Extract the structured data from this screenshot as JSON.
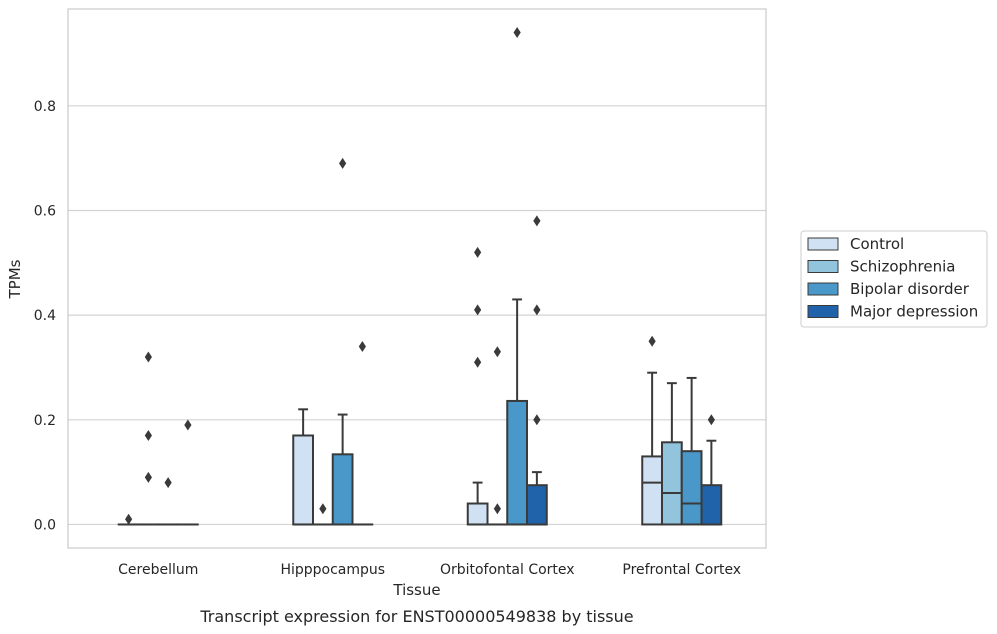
{
  "chart_data": {
    "type": "boxplot",
    "caption": "Transcript expression for ENST00000549838 by tissue",
    "xlabel": "Tissue",
    "ylabel": "TPMs",
    "ylim": [
      -0.045,
      0.985
    ],
    "yticks": [
      0.0,
      0.2,
      0.4,
      0.6,
      0.8
    ],
    "ytick_labels": [
      "0.0",
      "0.2",
      "0.4",
      "0.6",
      "0.8"
    ],
    "grid": "horizontal",
    "legend_placement": "right",
    "categories": [
      "Cerebellum",
      "Hipppocampus",
      "Orbitofontal Cortex",
      "Prefrontal Cortex"
    ],
    "series": [
      {
        "name": "Control",
        "color": "#cfe1f2",
        "boxes": [
          {
            "q1": 0,
            "median": 0,
            "q3": 0,
            "whisker_low": 0,
            "whisker_high": 0,
            "outliers": [
              0.01
            ]
          },
          {
            "q1": 0,
            "median": 0,
            "q3": 0.17,
            "whisker_low": 0,
            "whisker_high": 0.22,
            "outliers": []
          },
          {
            "q1": 0,
            "median": 0,
            "q3": 0.04,
            "whisker_low": 0,
            "whisker_high": 0.08,
            "outliers": [
              0.31,
              0.41,
              0.52
            ]
          },
          {
            "q1": 0,
            "median": 0.08,
            "q3": 0.13,
            "whisker_low": 0,
            "whisker_high": 0.29,
            "outliers": [
              0.35
            ]
          }
        ]
      },
      {
        "name": "Schizophrenia",
        "color": "#93c4de",
        "boxes": [
          {
            "q1": 0,
            "median": 0,
            "q3": 0,
            "whisker_low": 0,
            "whisker_high": 0,
            "outliers": [
              0.09,
              0.17,
              0.32
            ]
          },
          {
            "q1": 0,
            "median": 0,
            "q3": 0,
            "whisker_low": 0,
            "whisker_high": 0,
            "outliers": [
              0.03
            ]
          },
          {
            "q1": 0,
            "median": 0,
            "q3": 0,
            "whisker_low": 0,
            "whisker_high": 0,
            "outliers": [
              0.03,
              0.33
            ]
          },
          {
            "q1": 0,
            "median": 0.06,
            "q3": 0.157,
            "whisker_low": 0,
            "whisker_high": 0.27,
            "outliers": []
          }
        ]
      },
      {
        "name": "Bipolar disorder",
        "color": "#4a98c9",
        "boxes": [
          {
            "q1": 0,
            "median": 0,
            "q3": 0,
            "whisker_low": 0,
            "whisker_high": 0,
            "outliers": [
              0.08
            ]
          },
          {
            "q1": 0,
            "median": 0,
            "q3": 0.134,
            "whisker_low": 0,
            "whisker_high": 0.21,
            "outliers": [
              0.69
            ]
          },
          {
            "q1": 0,
            "median": 0,
            "q3": 0.236,
            "whisker_low": 0,
            "whisker_high": 0.43,
            "outliers": [
              0.94
            ]
          },
          {
            "q1": 0,
            "median": 0.04,
            "q3": 0.14,
            "whisker_low": 0,
            "whisker_high": 0.28,
            "outliers": []
          }
        ]
      },
      {
        "name": "Major depression",
        "color": "#2163aa",
        "boxes": [
          {
            "q1": 0,
            "median": 0,
            "q3": 0,
            "whisker_low": 0,
            "whisker_high": 0,
            "outliers": [
              0.19
            ]
          },
          {
            "q1": 0,
            "median": 0,
            "q3": 0,
            "whisker_low": 0,
            "whisker_high": 0,
            "outliers": [
              0.34
            ]
          },
          {
            "q1": 0,
            "median": 0,
            "q3": 0.075,
            "whisker_low": 0,
            "whisker_high": 0.1,
            "outliers": [
              0.2,
              0.41,
              0.58
            ]
          },
          {
            "q1": 0,
            "median": 0,
            "q3": 0.075,
            "whisker_low": 0,
            "whisker_high": 0.16,
            "outliers": [
              0.2
            ]
          }
        ]
      }
    ]
  }
}
